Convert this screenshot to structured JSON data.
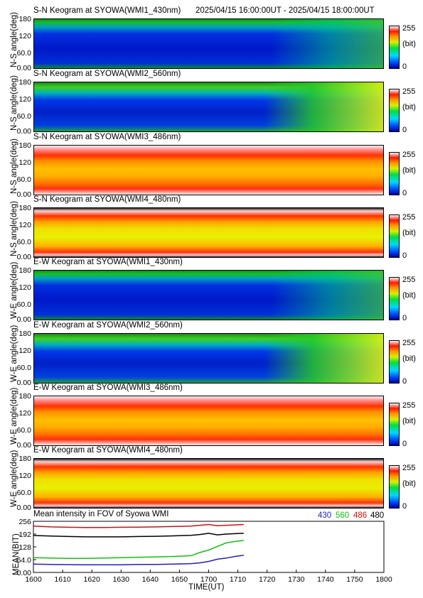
{
  "header": {
    "time_range": "2025/04/15 16:00:00UT - 2025/04/15 18:00:00UT"
  },
  "keograms": [
    {
      "title": "S-N Keogram at SYOWA(WMI1_430nm)",
      "ylabel": "N-S angle(deg)",
      "style": "blue-green"
    },
    {
      "title": "S-N Keogram at SYOWA(WMI2_560nm)",
      "ylabel": "N-S angle(deg)",
      "style": "blue-green-aurora"
    },
    {
      "title": "S-N Keogram at SYOWA(WMI3_486nm)",
      "ylabel": "N-S angle(deg)",
      "style": "red-yellow"
    },
    {
      "title": "S-N Keogram at SYOWA(WMI4_480nm)",
      "ylabel": "N-S angle(deg)",
      "style": "red-yellow-dark"
    },
    {
      "title": "E-W Keogram at SYOWA(WMI1_430nm)",
      "ylabel": "W-E angle(deg)",
      "style": "blue-green"
    },
    {
      "title": "E-W Keogram at SYOWA(WMI2_560nm)",
      "ylabel": "W-E angle(deg)",
      "style": "blue-green-aurora"
    },
    {
      "title": "E-W Keogram at SYOWA(WMI3_486nm)",
      "ylabel": "W-E angle(deg)",
      "style": "red-yellow"
    },
    {
      "title": "E-W Keogram at SYOWA(WMI4_480nm)",
      "ylabel": "W-E angle(deg)",
      "style": "red-yellow-dark"
    }
  ],
  "keogram_yticks": [
    "180",
    "120",
    "60.0",
    "0.00"
  ],
  "colorbar": {
    "max_label": "255",
    "unit_label": "(bit)",
    "min_label": "0"
  },
  "legend": [
    {
      "label": "430",
      "color": "#2020c0"
    },
    {
      "label": "560",
      "color": "#10c010"
    },
    {
      "label": "486",
      "color": "#d01010"
    },
    {
      "label": "480",
      "color": "#000000"
    }
  ],
  "chart_data": {
    "type": "line",
    "title": "Mean intensity in FOV of Syowa WMI",
    "xlabel": "TIME(UT)",
    "ylabel": "MEAN(BIT)",
    "xlim": [
      1600,
      1800
    ],
    "ylim": [
      0,
      256
    ],
    "yticks": [
      0,
      64,
      128,
      192,
      256
    ],
    "ytick_labels": [
      "0.00",
      "64.0",
      "128",
      "192",
      "256"
    ],
    "xticks": [
      1600,
      1610,
      1620,
      1630,
      1640,
      1650,
      1700,
      1710,
      1720,
      1730,
      1740,
      1750,
      1800
    ],
    "xtick_labels": [
      "1600",
      "1610",
      "1620",
      "1630",
      "1640",
      "1650",
      "1700",
      "1710",
      "1720",
      "1730",
      "1740",
      "1750",
      "1800"
    ],
    "x": [
      0,
      10,
      20,
      30,
      40,
      50,
      60,
      70,
      80,
      90,
      95,
      100,
      105,
      110,
      115,
      120
    ],
    "series": [
      {
        "name": "430",
        "color": "#2020c0",
        "values": [
          42,
          40,
          39,
          38,
          38,
          38,
          40,
          40,
          42,
          44,
          48,
          55,
          66,
          72,
          80,
          86
        ]
      },
      {
        "name": "560",
        "color": "#10c010",
        "values": [
          74,
          72,
          70,
          70,
          72,
          74,
          76,
          78,
          80,
          84,
          100,
          112,
          130,
          148,
          155,
          160
        ]
      },
      {
        "name": "486",
        "color": "#d01010",
        "values": [
          232,
          228,
          226,
          225,
          225,
          226,
          227,
          228,
          230,
          232,
          236,
          240,
          234,
          236,
          238,
          240
        ]
      },
      {
        "name": "480",
        "color": "#000000",
        "values": [
          185,
          182,
          180,
          178,
          178,
          178,
          180,
          181,
          183,
          186,
          190,
          196,
          188,
          192,
          194,
          196
        ]
      }
    ]
  }
}
